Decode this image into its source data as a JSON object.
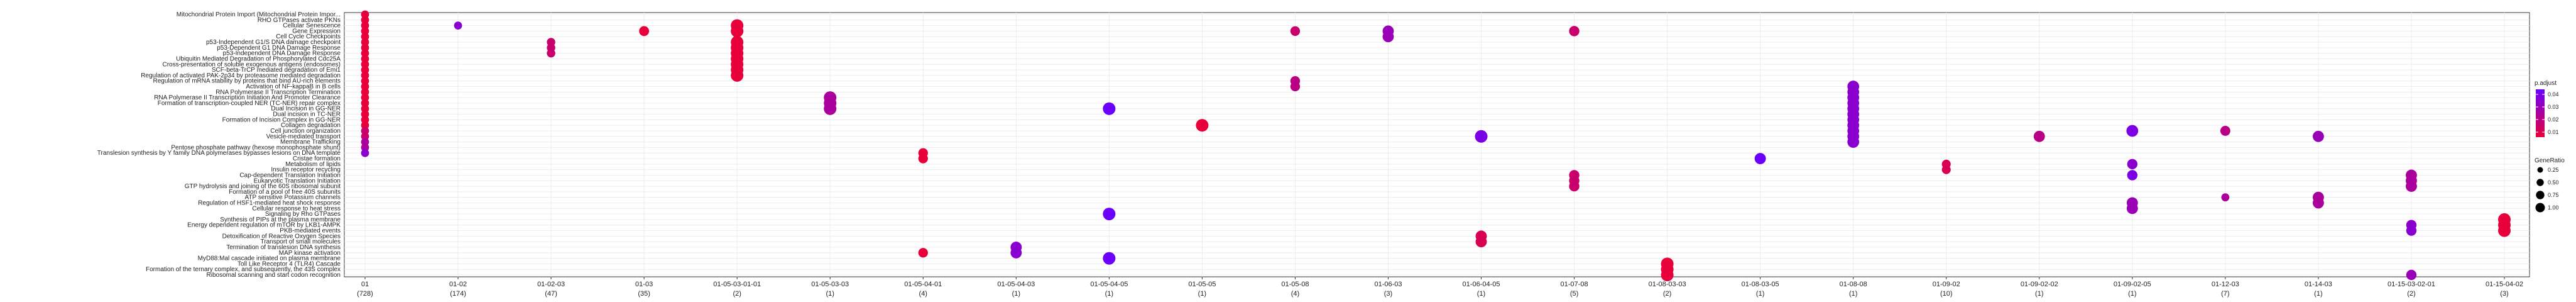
{
  "chart_data": {
    "type": "scatter",
    "x_categories": [
      {
        "label": "01",
        "count": "(728)"
      },
      {
        "label": "01-02",
        "count": "(174)"
      },
      {
        "label": "01-02-03",
        "count": "(47)"
      },
      {
        "label": "01-03",
        "count": "(35)"
      },
      {
        "label": "01-05-03-01-01",
        "count": "(2)"
      },
      {
        "label": "01-05-03-03",
        "count": "(1)"
      },
      {
        "label": "01-05-04-01",
        "count": "(4)"
      },
      {
        "label": "01-05-04-03",
        "count": "(1)"
      },
      {
        "label": "01-05-04-05",
        "count": "(1)"
      },
      {
        "label": "01-05-05",
        "count": "(1)"
      },
      {
        "label": "01-05-08",
        "count": "(4)"
      },
      {
        "label": "01-06-03",
        "count": "(3)"
      },
      {
        "label": "01-06-04-05",
        "count": "(1)"
      },
      {
        "label": "01-07-08",
        "count": "(5)"
      },
      {
        "label": "01-08-03-03",
        "count": "(2)"
      },
      {
        "label": "01-08-03-05",
        "count": "(1)"
      },
      {
        "label": "01-08-08",
        "count": "(1)"
      },
      {
        "label": "01-09-02",
        "count": "(10)"
      },
      {
        "label": "01-09-02-02",
        "count": "(1)"
      },
      {
        "label": "01-09-02-05",
        "count": "(1)"
      },
      {
        "label": "01-12-03",
        "count": "(7)"
      },
      {
        "label": "01-14-03",
        "count": "(1)"
      },
      {
        "label": "01-15-03-02-01",
        "count": "(2)"
      },
      {
        "label": "01-15-04-02",
        "count": "(3)"
      }
    ],
    "y_labels": [
      "Mitochondrial Protein Import (Mitochondrial Protein Impor...",
      "RHO GTPases activate PKNs",
      "Cellular Senescence",
      "Gene Expression",
      "Cell Cycle Checkpoints",
      "p53-Independent G1/S DNA damage checkpoint",
      "p53-Dependent G1 DNA Damage Response",
      "p53-Independent DNA Damage Response",
      "Ubiquitin Mediated Degradation of Phosphorylated Cdc25A",
      "Cross-presentation of soluble exogenous antigens (endosomes)",
      "SCF-beta-TrCP mediated degradation of Emi1",
      "Regulation of activated PAK-2p34 by proteasome mediated degradation",
      "Regulation of mRNA stability by proteins that bind AU-rich elements",
      "Activation of NF-kappaB in B cells",
      "RNA Polymerase II Transcription Termination",
      "RNA Polymerase II Transcription Initiation And Promoter Clearance",
      "Formation of transcription-coupled NER (TC-NER) repair complex",
      "Dual Incision in GG-NER",
      "Dual incision in TC-NER",
      "Formation of Incision Complex in GG-NER",
      "Collagen degradation",
      "Cell junction organization",
      "Vesicle-mediated transport",
      "Membrane Trafficking",
      "Pentose phosphate pathway (hexose monophosphate shunt)",
      "Translesion synthesis by Y family DNA polymerases bypasses lesions on DNA template",
      "Cristae formation",
      "Metabolism of lipids",
      "Insulin receptor recycling",
      "Cap-dependent Translation Initiation",
      "Eukaryotic Translation Initiation",
      "GTP hydrolysis and joining of the 60S ribosomal subunit",
      "Formation of a pool of free 40S subunits",
      "ATP sensitive Potassium channels",
      "Regulation of HSF1-mediated heat shock response",
      "Cellular response to heat stress",
      "Signaling by Rho GTPases",
      "Synthesis of PIPs at the plasma membrane",
      "Energy dependent regulation of mTOR by LKB1-AMPK",
      "PKB-mediated events",
      "Detoxification of Reactive Oxygen Species",
      "Transport of small molecules",
      "Termination of translesion DNA synthesis",
      "MAP kinase activation",
      "MyD88:Mal cascade initiated on plasma membrane",
      "Toll Like Receptor 4 (TLR4) Cascade",
      "Formation of the ternary complex, and subsequently, the 43S complex",
      "Ribosomal scanning and start codon recognition"
    ],
    "points": [
      {
        "x": "01",
        "y": 0,
        "ratio": 0.3,
        "p": 0.01
      },
      {
        "x": "01",
        "y": 1,
        "ratio": 0.3,
        "p": 0.01
      },
      {
        "x": "01",
        "y": 2,
        "ratio": 0.3,
        "p": 0.01
      },
      {
        "x": "01",
        "y": 3,
        "ratio": 0.3,
        "p": 0.01
      },
      {
        "x": "01",
        "y": 4,
        "ratio": 0.3,
        "p": 0.01
      },
      {
        "x": "01",
        "y": 5,
        "ratio": 0.3,
        "p": 0.01
      },
      {
        "x": "01",
        "y": 6,
        "ratio": 0.3,
        "p": 0.01
      },
      {
        "x": "01",
        "y": 7,
        "ratio": 0.3,
        "p": 0.01
      },
      {
        "x": "01",
        "y": 8,
        "ratio": 0.3,
        "p": 0.01
      },
      {
        "x": "01",
        "y": 9,
        "ratio": 0.3,
        "p": 0.01
      },
      {
        "x": "01",
        "y": 10,
        "ratio": 0.3,
        "p": 0.01
      },
      {
        "x": "01",
        "y": 11,
        "ratio": 0.3,
        "p": 0.01
      },
      {
        "x": "01",
        "y": 12,
        "ratio": 0.3,
        "p": 0.01
      },
      {
        "x": "01",
        "y": 13,
        "ratio": 0.3,
        "p": 0.01
      },
      {
        "x": "01",
        "y": 14,
        "ratio": 0.3,
        "p": 0.01
      },
      {
        "x": "01",
        "y": 15,
        "ratio": 0.3,
        "p": 0.01
      },
      {
        "x": "01",
        "y": 16,
        "ratio": 0.3,
        "p": 0.01
      },
      {
        "x": "01",
        "y": 17,
        "ratio": 0.3,
        "p": 0.01
      },
      {
        "x": "01",
        "y": 18,
        "ratio": 0.3,
        "p": 0.01
      },
      {
        "x": "01",
        "y": 19,
        "ratio": 0.3,
        "p": 0.01
      },
      {
        "x": "01",
        "y": 20,
        "ratio": 0.3,
        "p": 0.01
      },
      {
        "x": "01",
        "y": 21,
        "ratio": 0.3,
        "p": 0.02
      },
      {
        "x": "01",
        "y": 22,
        "ratio": 0.3,
        "p": 0.02
      },
      {
        "x": "01",
        "y": 23,
        "ratio": 0.3,
        "p": 0.03
      },
      {
        "x": "01",
        "y": 24,
        "ratio": 0.3,
        "p": 0.03
      },
      {
        "x": "01",
        "y": 25,
        "ratio": 0.3,
        "p": 0.04
      },
      {
        "x": "01-02",
        "y": 2,
        "ratio": 0.3,
        "p": 0.04
      },
      {
        "x": "01-02-03",
        "y": 5,
        "ratio": 0.35,
        "p": 0.02
      },
      {
        "x": "01-02-03",
        "y": 6,
        "ratio": 0.35,
        "p": 0.02
      },
      {
        "x": "01-02-03",
        "y": 7,
        "ratio": 0.35,
        "p": 0.02
      },
      {
        "x": "01-03",
        "y": 3,
        "ratio": 0.55,
        "p": 0.01
      },
      {
        "x": "01-05-03-01-01",
        "y": 2,
        "ratio": 1.0,
        "p": 0.01
      },
      {
        "x": "01-05-03-01-01",
        "y": 3,
        "ratio": 1.0,
        "p": 0.01
      },
      {
        "x": "01-05-03-01-01",
        "y": 5,
        "ratio": 1.0,
        "p": 0.01
      },
      {
        "x": "01-05-03-01-01",
        "y": 6,
        "ratio": 1.0,
        "p": 0.01
      },
      {
        "x": "01-05-03-01-01",
        "y": 7,
        "ratio": 1.0,
        "p": 0.01
      },
      {
        "x": "01-05-03-01-01",
        "y": 8,
        "ratio": 1.0,
        "p": 0.01
      },
      {
        "x": "01-05-03-01-01",
        "y": 9,
        "ratio": 1.0,
        "p": 0.01
      },
      {
        "x": "01-05-03-01-01",
        "y": 10,
        "ratio": 1.0,
        "p": 0.01
      },
      {
        "x": "01-05-03-01-01",
        "y": 11,
        "ratio": 1.0,
        "p": 0.01
      },
      {
        "x": "01-05-03-03",
        "y": 15,
        "ratio": 1.0,
        "p": 0.03
      },
      {
        "x": "01-05-03-03",
        "y": 16,
        "ratio": 1.0,
        "p": 0.03
      },
      {
        "x": "01-05-03-03",
        "y": 17,
        "ratio": 1.0,
        "p": 0.03
      },
      {
        "x": "01-05-04-01",
        "y": 25,
        "ratio": 0.5,
        "p": 0.01
      },
      {
        "x": "01-05-04-01",
        "y": 26,
        "ratio": 0.5,
        "p": 0.01
      },
      {
        "x": "01-05-04-01",
        "y": 43,
        "ratio": 0.5,
        "p": 0.01
      },
      {
        "x": "01-05-04-03",
        "y": 42,
        "ratio": 0.75,
        "p": 0.04
      },
      {
        "x": "01-05-04-03",
        "y": 43,
        "ratio": 0.75,
        "p": 0.04
      },
      {
        "x": "01-05-04-05",
        "y": 17,
        "ratio": 1.0,
        "p": 0.05
      },
      {
        "x": "01-05-04-05",
        "y": 36,
        "ratio": 1.0,
        "p": 0.05
      },
      {
        "x": "01-05-04-05",
        "y": 44,
        "ratio": 1.0,
        "p": 0.05
      },
      {
        "x": "01-05-05",
        "y": 20,
        "ratio": 1.0,
        "p": 0.01
      },
      {
        "x": "01-05-08",
        "y": 3,
        "ratio": 0.5,
        "p": 0.02
      },
      {
        "x": "01-05-08",
        "y": 12,
        "ratio": 0.5,
        "p": 0.025
      },
      {
        "x": "01-05-08",
        "y": 13,
        "ratio": 0.5,
        "p": 0.025
      },
      {
        "x": "01-06-03",
        "y": 3,
        "ratio": 0.75,
        "p": 0.035
      },
      {
        "x": "01-06-03",
        "y": 4,
        "ratio": 0.75,
        "p": 0.035
      },
      {
        "x": "01-06-04-05",
        "y": 22,
        "ratio": 1.0,
        "p": 0.045
      },
      {
        "x": "01-06-04-05",
        "y": 40,
        "ratio": 0.75,
        "p": 0.015
      },
      {
        "x": "01-06-04-05",
        "y": 41,
        "ratio": 0.75,
        "p": 0.015
      },
      {
        "x": "01-07-08",
        "y": 3,
        "ratio": 0.6,
        "p": 0.02
      },
      {
        "x": "01-07-08",
        "y": 29,
        "ratio": 0.6,
        "p": 0.02
      },
      {
        "x": "01-07-08",
        "y": 30,
        "ratio": 0.6,
        "p": 0.02
      },
      {
        "x": "01-07-08",
        "y": 31,
        "ratio": 0.6,
        "p": 0.02
      },
      {
        "x": "01-08-03-03",
        "y": 45,
        "ratio": 1.0,
        "p": 0.01
      },
      {
        "x": "01-08-03-03",
        "y": 46,
        "ratio": 1.0,
        "p": 0.01
      },
      {
        "x": "01-08-03-03",
        "y": 47,
        "ratio": 1.0,
        "p": 0.01
      },
      {
        "x": "01-08-03-05",
        "y": 26,
        "ratio": 0.75,
        "p": 0.05
      },
      {
        "x": "01-08-08",
        "y": 13,
        "ratio": 0.85,
        "p": 0.04
      },
      {
        "x": "01-08-08",
        "y": 14,
        "ratio": 0.85,
        "p": 0.04
      },
      {
        "x": "01-08-08",
        "y": 15,
        "ratio": 0.85,
        "p": 0.04
      },
      {
        "x": "01-08-08",
        "y": 16,
        "ratio": 0.85,
        "p": 0.04
      },
      {
        "x": "01-08-08",
        "y": 17,
        "ratio": 0.85,
        "p": 0.04
      },
      {
        "x": "01-08-08",
        "y": 18,
        "ratio": 0.85,
        "p": 0.04
      },
      {
        "x": "01-08-08",
        "y": 19,
        "ratio": 0.85,
        "p": 0.04
      },
      {
        "x": "01-08-08",
        "y": 20,
        "ratio": 0.85,
        "p": 0.04
      },
      {
        "x": "01-08-08",
        "y": 21,
        "ratio": 0.85,
        "p": 0.04
      },
      {
        "x": "01-08-08",
        "y": 22,
        "ratio": 0.85,
        "p": 0.04
      },
      {
        "x": "01-08-08",
        "y": 23,
        "ratio": 0.85,
        "p": 0.04
      },
      {
        "x": "01-09-02",
        "y": 27,
        "ratio": 0.4,
        "p": 0.015
      },
      {
        "x": "01-09-02",
        "y": 28,
        "ratio": 0.4,
        "p": 0.015
      },
      {
        "x": "01-09-02-02",
        "y": 22,
        "ratio": 0.75,
        "p": 0.025
      },
      {
        "x": "01-09-02-05",
        "y": 21,
        "ratio": 0.85,
        "p": 0.045
      },
      {
        "x": "01-09-02-05",
        "y": 27,
        "ratio": 0.6,
        "p": 0.04
      },
      {
        "x": "01-09-02-05",
        "y": 29,
        "ratio": 0.6,
        "p": 0.045
      },
      {
        "x": "01-09-02-05",
        "y": 34,
        "ratio": 0.75,
        "p": 0.035
      },
      {
        "x": "01-09-02-05",
        "y": 35,
        "ratio": 0.75,
        "p": 0.035
      },
      {
        "x": "01-12-03",
        "y": 21,
        "ratio": 0.55,
        "p": 0.025
      },
      {
        "x": "01-12-03",
        "y": 33,
        "ratio": 0.3,
        "p": 0.03
      },
      {
        "x": "01-14-03",
        "y": 22,
        "ratio": 0.75,
        "p": 0.035
      },
      {
        "x": "01-14-03",
        "y": 33,
        "ratio": 0.75,
        "p": 0.03
      },
      {
        "x": "01-14-03",
        "y": 34,
        "ratio": 0.75,
        "p": 0.03
      },
      {
        "x": "01-15-03-02-01",
        "y": 29,
        "ratio": 0.75,
        "p": 0.03
      },
      {
        "x": "01-15-03-02-01",
        "y": 30,
        "ratio": 0.75,
        "p": 0.03
      },
      {
        "x": "01-15-03-02-01",
        "y": 31,
        "ratio": 0.75,
        "p": 0.03
      },
      {
        "x": "01-15-03-02-01",
        "y": 38,
        "ratio": 0.6,
        "p": 0.04
      },
      {
        "x": "01-15-03-02-01",
        "y": 39,
        "ratio": 0.6,
        "p": 0.04
      },
      {
        "x": "01-15-03-02-01",
        "y": 47,
        "ratio": 0.6,
        "p": 0.035
      },
      {
        "x": "01-15-04-02",
        "y": 37,
        "ratio": 1.0,
        "p": 0.01
      },
      {
        "x": "01-15-04-02",
        "y": 38,
        "ratio": 1.0,
        "p": 0.01
      },
      {
        "x": "01-15-04-02",
        "y": 39,
        "ratio": 1.0,
        "p": 0.01
      }
    ],
    "color_legend": {
      "title": "p.adjust",
      "ticks": [
        "0.04",
        "0.03",
        "0.02",
        "0.01"
      ],
      "low_color": "#e8003a",
      "high_color": "#6b00ff"
    },
    "size_legend": {
      "title": "GeneRatio",
      "ticks": [
        "0.25",
        "0.50",
        "0.75",
        "1.00"
      ]
    },
    "grid": true,
    "legend_position": "right"
  }
}
